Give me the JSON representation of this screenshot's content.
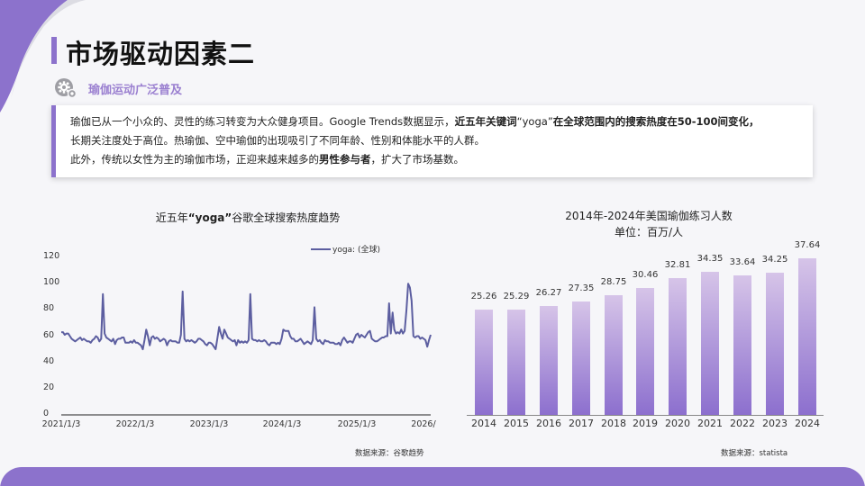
{
  "header": {
    "title": "市场驱动因素二",
    "subtitle": "瑜伽运动广泛普及",
    "accent_color": "#8c72cc"
  },
  "intro": {
    "line1_a": "瑜伽已从一个小众的、灵性的练习转变为大众健身项目。Google Trends数据显示，",
    "line1_b_bold": "近五年关键词",
    "line1_c": "“yoga”",
    "line1_d_bold": "在全球范围内的搜索热度在50-100间变化，",
    "line2": "长期关注度处于高位。热瑜伽、空中瑜伽的出现吸引了不同年龄、性别和体能水平的人群。",
    "line3_a": "此外，传统以女性为主的瑜伽市场，正迎来越来越多的",
    "line3_b_bold": "男性参与者",
    "line3_c": "，扩大了市场基数。"
  },
  "chart_data": [
    {
      "type": "line",
      "title": "近五年“yoga”谷歌全球搜索热度趋势",
      "title_pre": "近五年",
      "title_bold": "“yoga”",
      "title_post": "谷歌全球搜索热度趋势",
      "legend": "yoga: (全球)",
      "series_color": "#5c5ea0",
      "xlabel": "",
      "ylabel": "",
      "ylim": [
        0,
        120
      ],
      "yticks": [
        "0",
        "20",
        "40",
        "60",
        "80",
        "100",
        "120"
      ],
      "xticks": [
        "2021/1/3",
        "2022/1/3",
        "2023/1/3",
        "2024/1/3",
        "2025/1/3",
        "2026/"
      ],
      "grid": false,
      "source": "数据来源：谷歌趋势",
      "series": [
        {
          "name": "yoga: (全球)",
          "x_range": [
            "2021/1/3",
            "2026/1"
          ],
          "values": [
            63,
            63,
            61,
            62,
            62,
            60,
            58,
            57,
            56,
            57,
            58,
            59,
            57,
            58,
            57,
            56,
            56,
            55,
            57,
            58,
            60,
            59,
            56,
            58,
            92,
            62,
            59,
            58,
            57,
            56,
            58,
            54,
            57,
            58,
            58,
            59,
            59,
            55,
            55,
            55,
            56,
            55,
            57,
            55,
            55,
            54,
            53,
            50,
            57,
            65,
            60,
            53,
            59,
            60,
            58,
            59,
            58,
            56,
            57,
            58,
            57,
            53,
            56,
            57,
            56,
            56,
            56,
            55,
            55,
            61,
            94,
            58,
            56,
            57,
            56,
            57,
            56,
            55,
            56,
            58,
            58,
            57,
            56,
            54,
            53,
            55,
            55,
            54,
            52,
            50,
            58,
            67,
            62,
            58,
            65,
            62,
            59,
            58,
            57,
            56,
            57,
            53,
            57,
            55,
            56,
            55,
            56,
            55,
            57,
            92,
            58,
            57,
            57,
            56,
            57,
            56,
            56,
            57,
            56,
            54,
            53,
            55,
            55,
            55,
            54,
            55,
            54,
            58,
            65,
            64,
            64,
            64,
            60,
            58,
            58,
            56,
            56,
            57,
            58,
            56,
            54,
            55,
            56,
            55,
            54,
            57,
            82,
            58,
            56,
            57,
            55,
            54,
            57,
            56,
            56,
            55,
            55,
            55,
            54,
            54,
            55,
            53,
            57,
            59,
            57,
            55,
            56,
            56,
            55,
            58,
            61,
            62,
            59,
            61,
            60,
            59,
            61,
            63,
            64,
            58,
            57,
            56,
            56,
            57,
            58,
            59,
            59,
            60,
            60,
            85,
            62,
            78,
            65,
            62,
            63,
            62,
            65,
            62,
            64,
            80,
            100,
            97,
            87,
            60,
            59,
            60,
            60,
            58,
            59,
            58,
            57,
            52,
            57,
            61
          ]
        }
      ]
    },
    {
      "type": "bar",
      "title": "2014年-2024年美国瑜伽练习人数",
      "subtitle": "单位：百万/人",
      "categories": [
        "2014",
        "2015",
        "2016",
        "2017",
        "2018",
        "2019",
        "2020",
        "2021",
        "2022",
        "2023",
        "2024"
      ],
      "values": [
        25.26,
        25.29,
        26.27,
        27.35,
        28.75,
        30.46,
        32.81,
        34.35,
        33.64,
        34.25,
        37.64
      ],
      "labels": [
        "25.26",
        "25.29",
        "26.27",
        "27.35",
        "28.75",
        "30.46",
        "32.81",
        "34.35",
        "33.64",
        "34.25",
        "37.64"
      ],
      "xlabel": "",
      "ylabel": "百万/人",
      "ylim": [
        0,
        40
      ],
      "grid": false,
      "bar_gradient": [
        "#d6c4e8",
        "#8c6fce"
      ],
      "source": "数据来源：statista"
    }
  ]
}
